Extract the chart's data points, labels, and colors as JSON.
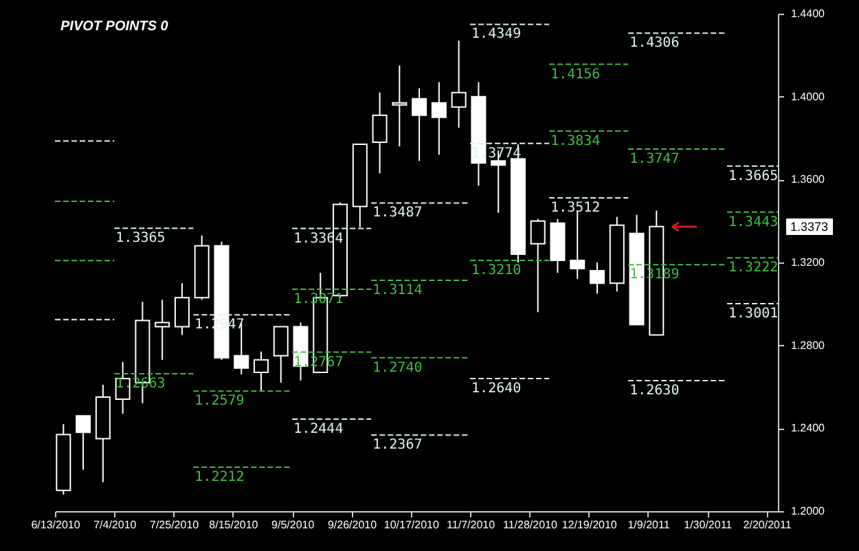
{
  "chart_data": {
    "type": "candlestick",
    "title": "PIVOT POINTS 0",
    "color": "#ffffff",
    "x": [
      "2010-06-16",
      "2010-06-23",
      "2010-06-30",
      "2010-07-07",
      "2010-07-14",
      "2010-07-21",
      "2010-07-28",
      "2010-08-04",
      "2010-08-11",
      "2010-08-18",
      "2010-08-25",
      "2010-09-01",
      "2010-09-08",
      "2010-09-15",
      "2010-09-22",
      "2010-09-29",
      "2010-10-06",
      "2010-10-13",
      "2010-10-20",
      "2010-10-27",
      "2010-11-03",
      "2010-11-10",
      "2010-11-17",
      "2010-11-24",
      "2010-12-01",
      "2010-12-08",
      "2010-12-15",
      "2010-12-22",
      "2010-12-29",
      "2011-01-05",
      "2011-01-12"
    ],
    "ohlc": [
      [
        1.21,
        1.242,
        1.208,
        1.237
      ],
      [
        1.246,
        1.246,
        1.22,
        1.238
      ],
      [
        1.235,
        1.261,
        1.214,
        1.255
      ],
      [
        1.254,
        1.272,
        1.247,
        1.264
      ],
      [
        1.262,
        1.301,
        1.252,
        1.292
      ],
      [
        1.289,
        1.302,
        1.273,
        1.291
      ],
      [
        1.289,
        1.31,
        1.285,
        1.303
      ],
      [
        1.303,
        1.333,
        1.302,
        1.328
      ],
      [
        1.328,
        1.33,
        1.273,
        1.274
      ],
      [
        1.275,
        1.291,
        1.266,
        1.269
      ],
      [
        1.267,
        1.277,
        1.258,
        1.273
      ],
      [
        1.275,
        1.289,
        1.262,
        1.289
      ],
      [
        1.289,
        1.291,
        1.263,
        1.27
      ],
      [
        1.267,
        1.315,
        1.267,
        1.303
      ],
      [
        1.304,
        1.349,
        1.303,
        1.348
      ],
      [
        1.347,
        1.377,
        1.337,
        1.377
      ],
      [
        1.378,
        1.402,
        1.363,
        1.391
      ],
      [
        1.396,
        1.415,
        1.376,
        1.397
      ],
      [
        1.399,
        1.404,
        1.369,
        1.391
      ],
      [
        1.397,
        1.407,
        1.372,
        1.39
      ],
      [
        1.395,
        1.427,
        1.385,
        1.402
      ],
      [
        1.4,
        1.407,
        1.357,
        1.368
      ],
      [
        1.369,
        1.374,
        1.344,
        1.367
      ],
      [
        1.37,
        1.377,
        1.32,
        1.324
      ],
      [
        1.329,
        1.341,
        1.296,
        1.34
      ],
      [
        1.339,
        1.341,
        1.315,
        1.321
      ],
      [
        1.321,
        1.345,
        1.312,
        1.317
      ],
      [
        1.316,
        1.32,
        1.305,
        1.31
      ],
      [
        1.31,
        1.342,
        1.306,
        1.338
      ],
      [
        1.334,
        1.343,
        1.29,
        1.29
      ],
      [
        1.285,
        1.345,
        1.285,
        1.3373
      ]
    ],
    "series": [
      {
        "type": "line",
        "color": "#dff2f2",
        "line_style": "dashed",
        "x": [
          "2010-06-13",
          "2010-07-04"
        ],
        "values": [
          1.3786,
          1.3786
        ]
      },
      {
        "type": "line",
        "color": "#3fbf3f",
        "line_style": "dashed",
        "x": [
          "2010-06-13",
          "2010-07-04"
        ],
        "values": [
          1.3495,
          1.3495
        ]
      },
      {
        "type": "line",
        "color": "#3fbf3f",
        "line_style": "dashed",
        "x": [
          "2010-06-13",
          "2010-07-04"
        ],
        "values": [
          1.3209,
          1.3209
        ]
      },
      {
        "type": "line",
        "color": "#dff2f2",
        "line_style": "dashed",
        "x": [
          "2010-06-13",
          "2010-07-04"
        ],
        "values": [
          1.2924,
          1.2924
        ]
      },
      {
        "type": "line",
        "color": "#dff2f2",
        "line_style": "dashed",
        "x": [
          "2010-07-04",
          "2010-08-01"
        ],
        "values": [
          1.3365,
          1.3365
        ],
        "value_labels": [
          "1.3365",
          null
        ]
      },
      {
        "type": "line",
        "color": "#3fbf3f",
        "line_style": "dashed",
        "x": [
          "2010-07-04",
          "2010-08-01"
        ],
        "values": [
          1.2663,
          1.2663
        ],
        "value_labels": [
          "1.2663",
          null
        ]
      },
      {
        "type": "line",
        "color": "#dff2f2",
        "line_style": "dashed",
        "x": [
          "2010-08-01",
          "2010-09-05"
        ],
        "values": [
          1.2947,
          1.2947
        ],
        "value_labels": [
          "1.2947",
          null
        ]
      },
      {
        "type": "line",
        "color": "#3fbf3f",
        "line_style": "dashed",
        "x": [
          "2010-08-01",
          "2010-09-05"
        ],
        "values": [
          1.2579,
          1.2579
        ],
        "value_labels": [
          "1.2579",
          null
        ]
      },
      {
        "type": "line",
        "color": "#3fbf3f",
        "line_style": "dashed",
        "x": [
          "2010-08-01",
          "2010-09-05"
        ],
        "values": [
          1.2212,
          1.2212
        ],
        "value_labels": [
          "1.2212",
          null
        ]
      },
      {
        "type": "line",
        "color": "#dff2f2",
        "line_style": "dashed",
        "x": [
          "2010-09-05",
          "2010-10-03"
        ],
        "values": [
          1.3364,
          1.3364
        ],
        "value_labels": [
          "1.3364",
          null
        ]
      },
      {
        "type": "line",
        "color": "#3fbf3f",
        "line_style": "dashed",
        "x": [
          "2010-09-05",
          "2010-10-03"
        ],
        "values": [
          1.3071,
          1.3071
        ],
        "value_labels": [
          "1.3071",
          null
        ]
      },
      {
        "type": "line",
        "color": "#3fbf3f",
        "line_style": "dashed",
        "x": [
          "2010-09-05",
          "2010-10-03"
        ],
        "values": [
          1.2767,
          1.2767
        ],
        "value_labels": [
          "1.2767",
          null
        ]
      },
      {
        "type": "line",
        "color": "#dff2f2",
        "line_style": "dashed",
        "x": [
          "2010-09-05",
          "2010-10-03"
        ],
        "values": [
          1.2444,
          1.2444
        ],
        "value_labels": [
          "1.2444",
          null
        ]
      },
      {
        "type": "line",
        "color": "#dff2f2",
        "line_style": "dashed",
        "x": [
          "2010-10-03",
          "2010-11-07"
        ],
        "values": [
          1.3487,
          1.3487
        ],
        "value_labels": [
          "1.3487",
          null
        ]
      },
      {
        "type": "line",
        "color": "#3fbf3f",
        "line_style": "dashed",
        "x": [
          "2010-10-03",
          "2010-11-07"
        ],
        "values": [
          1.3114,
          1.3114
        ],
        "value_labels": [
          "1.3114",
          null
        ]
      },
      {
        "type": "line",
        "color": "#3fbf3f",
        "line_style": "dashed",
        "x": [
          "2010-10-03",
          "2010-11-07"
        ],
        "values": [
          1.274,
          1.274
        ],
        "value_labels": [
          "1.2740",
          null
        ]
      },
      {
        "type": "line",
        "color": "#dff2f2",
        "line_style": "dashed",
        "x": [
          "2010-10-03",
          "2010-11-07"
        ],
        "values": [
          1.2367,
          1.2367
        ],
        "value_labels": [
          "1.2367",
          null
        ]
      },
      {
        "type": "line",
        "color": "#dff2f2",
        "line_style": "dashed",
        "x": [
          "2010-11-07",
          "2010-12-05"
        ],
        "values": [
          1.4349,
          1.4349
        ],
        "value_labels": [
          "1.4349",
          null
        ]
      },
      {
        "type": "line",
        "color": "#dff2f2",
        "line_style": "dashed",
        "x": [
          "2010-11-07",
          "2010-12-05"
        ],
        "values": [
          1.3774,
          1.3774
        ],
        "value_labels": [
          "1.3774",
          null
        ]
      },
      {
        "type": "line",
        "color": "#3fbf3f",
        "line_style": "dashed",
        "x": [
          "2010-11-07",
          "2010-12-05"
        ],
        "values": [
          1.321,
          1.321
        ],
        "value_labels": [
          "1.3210",
          null
        ]
      },
      {
        "type": "line",
        "color": "#dff2f2",
        "line_style": "dashed",
        "x": [
          "2010-11-07",
          "2010-12-05"
        ],
        "values": [
          1.264,
          1.264
        ],
        "value_labels": [
          "1.2640",
          null
        ]
      },
      {
        "type": "line",
        "color": "#3fbf3f",
        "line_style": "dashed",
        "x": [
          "2010-12-05",
          "2011-01-02"
        ],
        "values": [
          1.4156,
          1.4156
        ],
        "value_labels": [
          "1.4156",
          null
        ]
      },
      {
        "type": "line",
        "color": "#3fbf3f",
        "line_style": "dashed",
        "x": [
          "2010-12-05",
          "2011-01-02"
        ],
        "values": [
          1.3834,
          1.3834
        ],
        "value_labels": [
          "1.3834",
          null
        ]
      },
      {
        "type": "line",
        "color": "#dff2f2",
        "line_style": "dashed",
        "x": [
          "2010-12-05",
          "2011-01-02"
        ],
        "values": [
          1.3512,
          1.3512
        ],
        "value_labels": [
          "1.3512",
          null
        ]
      },
      {
        "type": "line",
        "color": "#dff2f2",
        "line_style": "dashed",
        "x": [
          "2011-01-02",
          "2011-02-06"
        ],
        "values": [
          1.4306,
          1.4306
        ],
        "value_labels": [
          "1.4306",
          null
        ]
      },
      {
        "type": "line",
        "color": "#3fbf3f",
        "line_style": "dashed",
        "x": [
          "2011-01-02",
          "2011-02-06"
        ],
        "values": [
          1.3747,
          1.3747
        ],
        "value_labels": [
          "1.3747",
          null
        ]
      },
      {
        "type": "line",
        "color": "#3fbf3f",
        "line_style": "dashed",
        "x": [
          "2011-01-02",
          "2011-02-06"
        ],
        "values": [
          1.3189,
          1.3189
        ],
        "value_labels": [
          "1.3189",
          null
        ]
      },
      {
        "type": "line",
        "color": "#dff2f2",
        "line_style": "dashed",
        "x": [
          "2011-01-02",
          "2011-02-06"
        ],
        "values": [
          1.263,
          1.263
        ],
        "value_labels": [
          "1.2630",
          null
        ]
      },
      {
        "type": "line",
        "color": "#dff2f2",
        "line_style": "dashed",
        "x": [
          "2011-02-06",
          "2011-02-24"
        ],
        "values": [
          1.3665,
          1.3665
        ],
        "value_labels": [
          "1.3665",
          null
        ]
      },
      {
        "type": "line",
        "color": "#3fbf3f",
        "line_style": "dashed",
        "x": [
          "2011-02-06",
          "2011-02-24"
        ],
        "values": [
          1.3443,
          1.3443
        ],
        "value_labels": [
          "1.3443",
          null
        ]
      },
      {
        "type": "line",
        "color": "#3fbf3f",
        "line_style": "dashed",
        "x": [
          "2011-02-06",
          "2011-02-24"
        ],
        "values": [
          1.3222,
          1.3222
        ],
        "value_labels": [
          "1.3222",
          null
        ]
      },
      {
        "type": "line",
        "color": "#dff2f2",
        "line_style": "dashed",
        "x": [
          "2011-02-06",
          "2011-02-24"
        ],
        "values": [
          1.3001,
          1.3001
        ],
        "value_labels": [
          "1.3001",
          null
        ]
      }
    ],
    "xlim": [
      "2010-06-13",
      "2011-02-24"
    ],
    "xticks": [
      {
        "value": "2010-06-13",
        "label": "6/13/2010"
      },
      {
        "value": "2010-07-04",
        "label": "7/4/2010"
      },
      {
        "value": "2010-07-25",
        "label": "7/25/2010"
      },
      {
        "value": "2010-08-15",
        "label": "8/15/2010"
      },
      {
        "value": "2010-09-05",
        "label": "9/5/2010"
      },
      {
        "value": "2010-09-26",
        "label": "9/26/2010"
      },
      {
        "value": "2010-10-17",
        "label": "10/17/2010"
      },
      {
        "value": "2010-11-07",
        "label": "11/7/2010"
      },
      {
        "value": "2010-11-28",
        "label": "11/28/2010"
      },
      {
        "value": "2010-12-19",
        "label": "12/19/2010"
      },
      {
        "value": "2011-01-09",
        "label": "1/9/2011"
      },
      {
        "value": "2011-01-30",
        "label": "1/30/2011"
      },
      {
        "value": "2011-02-20",
        "label": "2/20/2011"
      }
    ],
    "ylim": [
      1.2,
      1.44
    ],
    "yticks": [
      {
        "value": 1.2,
        "label": "1.2000"
      },
      {
        "value": 1.24,
        "label": "1.2400"
      },
      {
        "value": 1.28,
        "label": "1.2800"
      },
      {
        "value": 1.32,
        "label": "1.3200"
      },
      {
        "value": 1.36,
        "label": "1.3600"
      },
      {
        "value": 1.4,
        "label": "1.4000"
      },
      {
        "value": 1.44,
        "label": "1.4400"
      }
    ],
    "annotations": [
      "1.3373"
    ],
    "grid": false
  }
}
